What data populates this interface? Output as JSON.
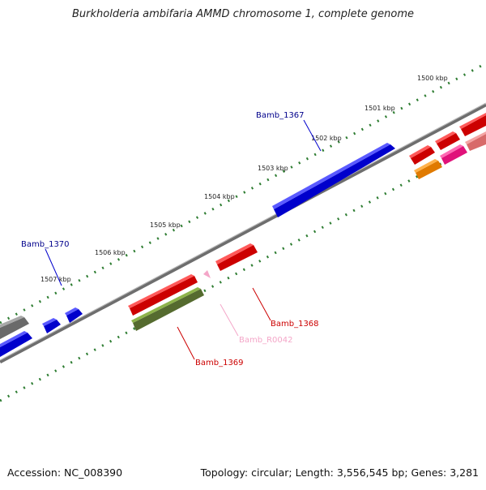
{
  "title": "Burkholderia ambifaria AMMD chromosome 1, complete genome",
  "footer": {
    "accession": "Accession: NC_008390",
    "summary": "Topology: circular; Length: 3,556,545 bp; Genes: 3,281"
  },
  "kbp_labels": [
    "1500 kbp",
    "1501 kbp",
    "1502 kbp",
    "1503 kbp",
    "1504 kbp",
    "1505 kbp",
    "1506 kbp",
    "1507 kbp"
  ],
  "gene_labels": {
    "g1367": "Bamb_1367",
    "g1370": "Bamb_1370",
    "g1368": "Bamb_1368",
    "g1369": "Bamb_1369",
    "r0042": "Bamb_R0042"
  },
  "colors": {
    "forward_gene": "#0000ee",
    "reverse_gene": "#ee0000",
    "rna": "#f4a6c8",
    "olive": "#6b8e23",
    "orange": "#ff8c00",
    "magenta": "#ff1493",
    "salmon": "#f08080",
    "grey": "#808080",
    "tick": "#2e7d32",
    "label_blue": "#00008b",
    "label_red": "#cc0000"
  }
}
